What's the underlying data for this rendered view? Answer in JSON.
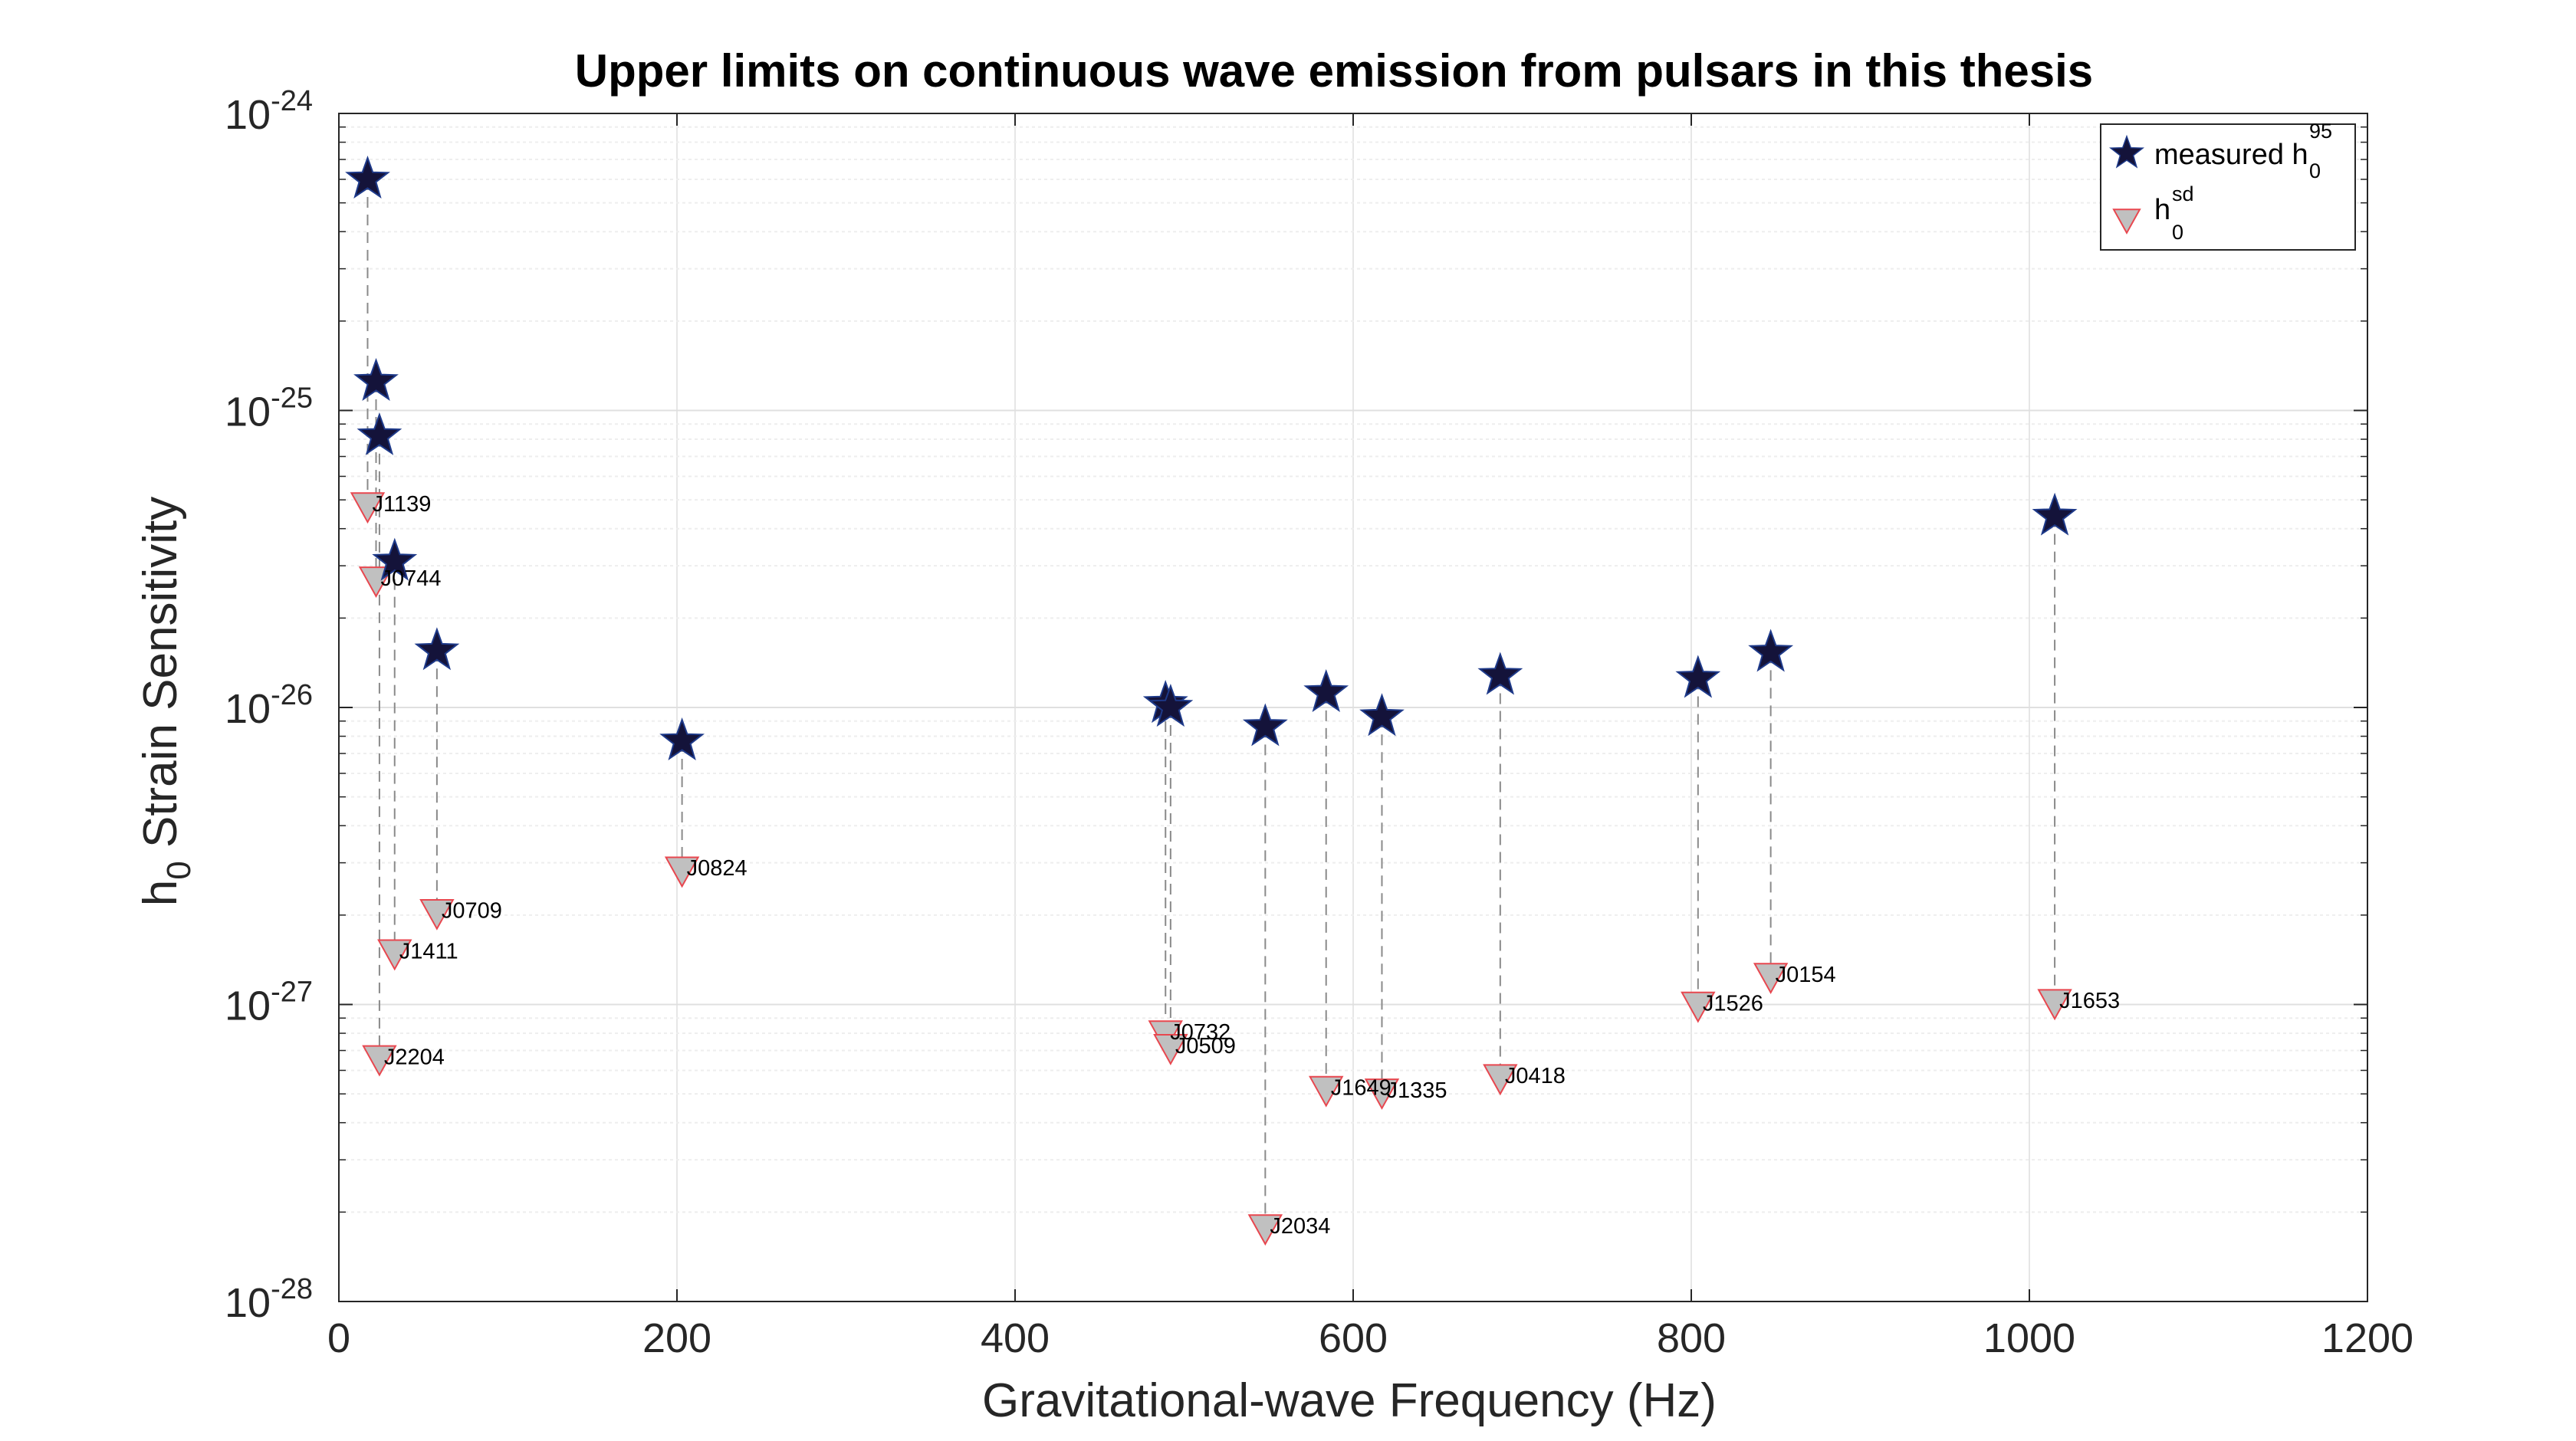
{
  "chart_data": {
    "type": "scatter",
    "title": "Upper limits on continuous wave emission from pulsars in this thesis",
    "xlabel": "Gravitational-wave Frequency (Hz)",
    "ylabel": {
      "base": "h",
      "sub": "0",
      "rest": " Strain Sensitivity"
    },
    "xlim": [
      0,
      1200
    ],
    "ylim": [
      1e-28,
      1e-24
    ],
    "yscale": "log",
    "grid": true,
    "x_ticks": [
      "0",
      "200",
      "400",
      "600",
      "800",
      "1000",
      "1200"
    ],
    "y_ticks": [
      {
        "base": "10",
        "exp": "-28"
      },
      {
        "base": "10",
        "exp": "-27"
      },
      {
        "base": "10",
        "exp": "-26"
      },
      {
        "base": "10",
        "exp": "-25"
      },
      {
        "base": "10",
        "exp": "-24"
      }
    ],
    "legend": {
      "position": "top-right",
      "entries": [
        {
          "text": "measured h",
          "sub": "0",
          "sup": "95",
          "marker": "star"
        },
        {
          "text": "h",
          "sub": "0",
          "sup": "sd",
          "marker": "triangle"
        }
      ]
    },
    "series": [
      {
        "name": "measured h0^95",
        "marker": "star",
        "color": "#14133a"
      },
      {
        "name": "h0^sd",
        "marker": "triangle",
        "color": "#c0c0c0",
        "edge": "#e8474f"
      }
    ],
    "pulsars": [
      {
        "label": "J1139",
        "x": 17,
        "h95": 6e-25,
        "hsd": 4.8e-26
      },
      {
        "label": "J0744",
        "x": 22,
        "h95": 1.25e-25,
        "hsd": 2.7e-26
      },
      {
        "label": "J2204",
        "x": 24,
        "h95": 8.2e-26,
        "hsd": 6.6e-28
      },
      {
        "label": "J1411",
        "x": 33,
        "h95": 3.1e-26,
        "hsd": 1.5e-27
      },
      {
        "label": "J0709",
        "x": 58,
        "h95": 1.55e-26,
        "hsd": 2.05e-27
      },
      {
        "label": "J0824",
        "x": 203,
        "h95": 7.7e-27,
        "hsd": 2.85e-27
      },
      {
        "label": "J0732",
        "x": 489,
        "h95": 1.03e-26,
        "hsd": 8e-28
      },
      {
        "label": "J0509",
        "x": 492,
        "h95": 1e-26,
        "hsd": 7.2e-28
      },
      {
        "label": "J2034",
        "x": 548,
        "h95": 8.6e-27,
        "hsd": 1.78e-28
      },
      {
        "label": "J1649",
        "x": 584,
        "h95": 1.12e-26,
        "hsd": 5.2e-28
      },
      {
        "label": "J1335",
        "x": 617,
        "h95": 9.3e-27,
        "hsd": 5.1e-28
      },
      {
        "label": "J0418",
        "x": 687,
        "h95": 1.28e-26,
        "hsd": 5.7e-28
      },
      {
        "label": "J1526",
        "x": 804,
        "h95": 1.25e-26,
        "hsd": 1e-27
      },
      {
        "label": "J0154",
        "x": 847,
        "h95": 1.53e-26,
        "hsd": 1.25e-27
      },
      {
        "label": "J1653",
        "x": 1015,
        "h95": 4.4e-26,
        "hsd": 1.02e-27
      }
    ]
  }
}
